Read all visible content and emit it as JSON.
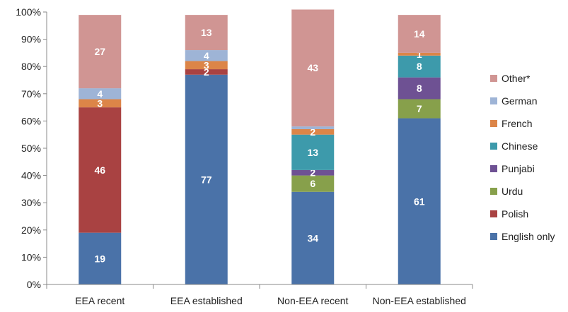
{
  "chart_data": {
    "type": "bar",
    "stacked": true,
    "categories": [
      "EEA recent",
      "EEA established",
      "Non-EEA recent",
      "Non-EEA established"
    ],
    "ylim": [
      0,
      100
    ],
    "yticks": [
      "0%",
      "10%",
      "20%",
      "30%",
      "40%",
      "50%",
      "60%",
      "70%",
      "80%",
      "90%",
      "100%"
    ],
    "legend_position": "right",
    "series": [
      {
        "name": "English only",
        "color": "#4a72a8",
        "values": [
          19,
          77,
          34,
          61
        ],
        "labels": [
          "19",
          "77",
          "34",
          "61"
        ]
      },
      {
        "name": "Polish",
        "color": "#a94242",
        "values": [
          46,
          2,
          0,
          0
        ],
        "labels": [
          "46",
          "2",
          "",
          ""
        ]
      },
      {
        "name": "Urdu",
        "color": "#87a04b",
        "values": [
          0,
          0,
          6,
          7
        ],
        "labels": [
          "",
          "",
          "6",
          "7"
        ]
      },
      {
        "name": "Punjabi",
        "color": "#6e5193",
        "values": [
          0,
          0,
          2,
          8
        ],
        "labels": [
          "",
          "",
          "2",
          "8"
        ]
      },
      {
        "name": "Chinese",
        "color": "#3d9aab",
        "values": [
          0,
          0,
          13,
          8
        ],
        "labels": [
          "",
          "",
          "13",
          "8"
        ]
      },
      {
        "name": "French",
        "color": "#dc8548",
        "values": [
          3,
          3,
          2,
          1
        ],
        "labels": [
          "3",
          "3",
          "2",
          "1"
        ]
      },
      {
        "name": "German",
        "color": "#9eb4d6",
        "values": [
          4,
          4,
          1,
          0
        ],
        "labels": [
          "4",
          "4",
          "",
          ""
        ]
      },
      {
        "name": "Other*",
        "color": "#d09593",
        "values": [
          27,
          13,
          43,
          14
        ],
        "labels": [
          "27",
          "13",
          "43",
          "14"
        ]
      }
    ]
  }
}
